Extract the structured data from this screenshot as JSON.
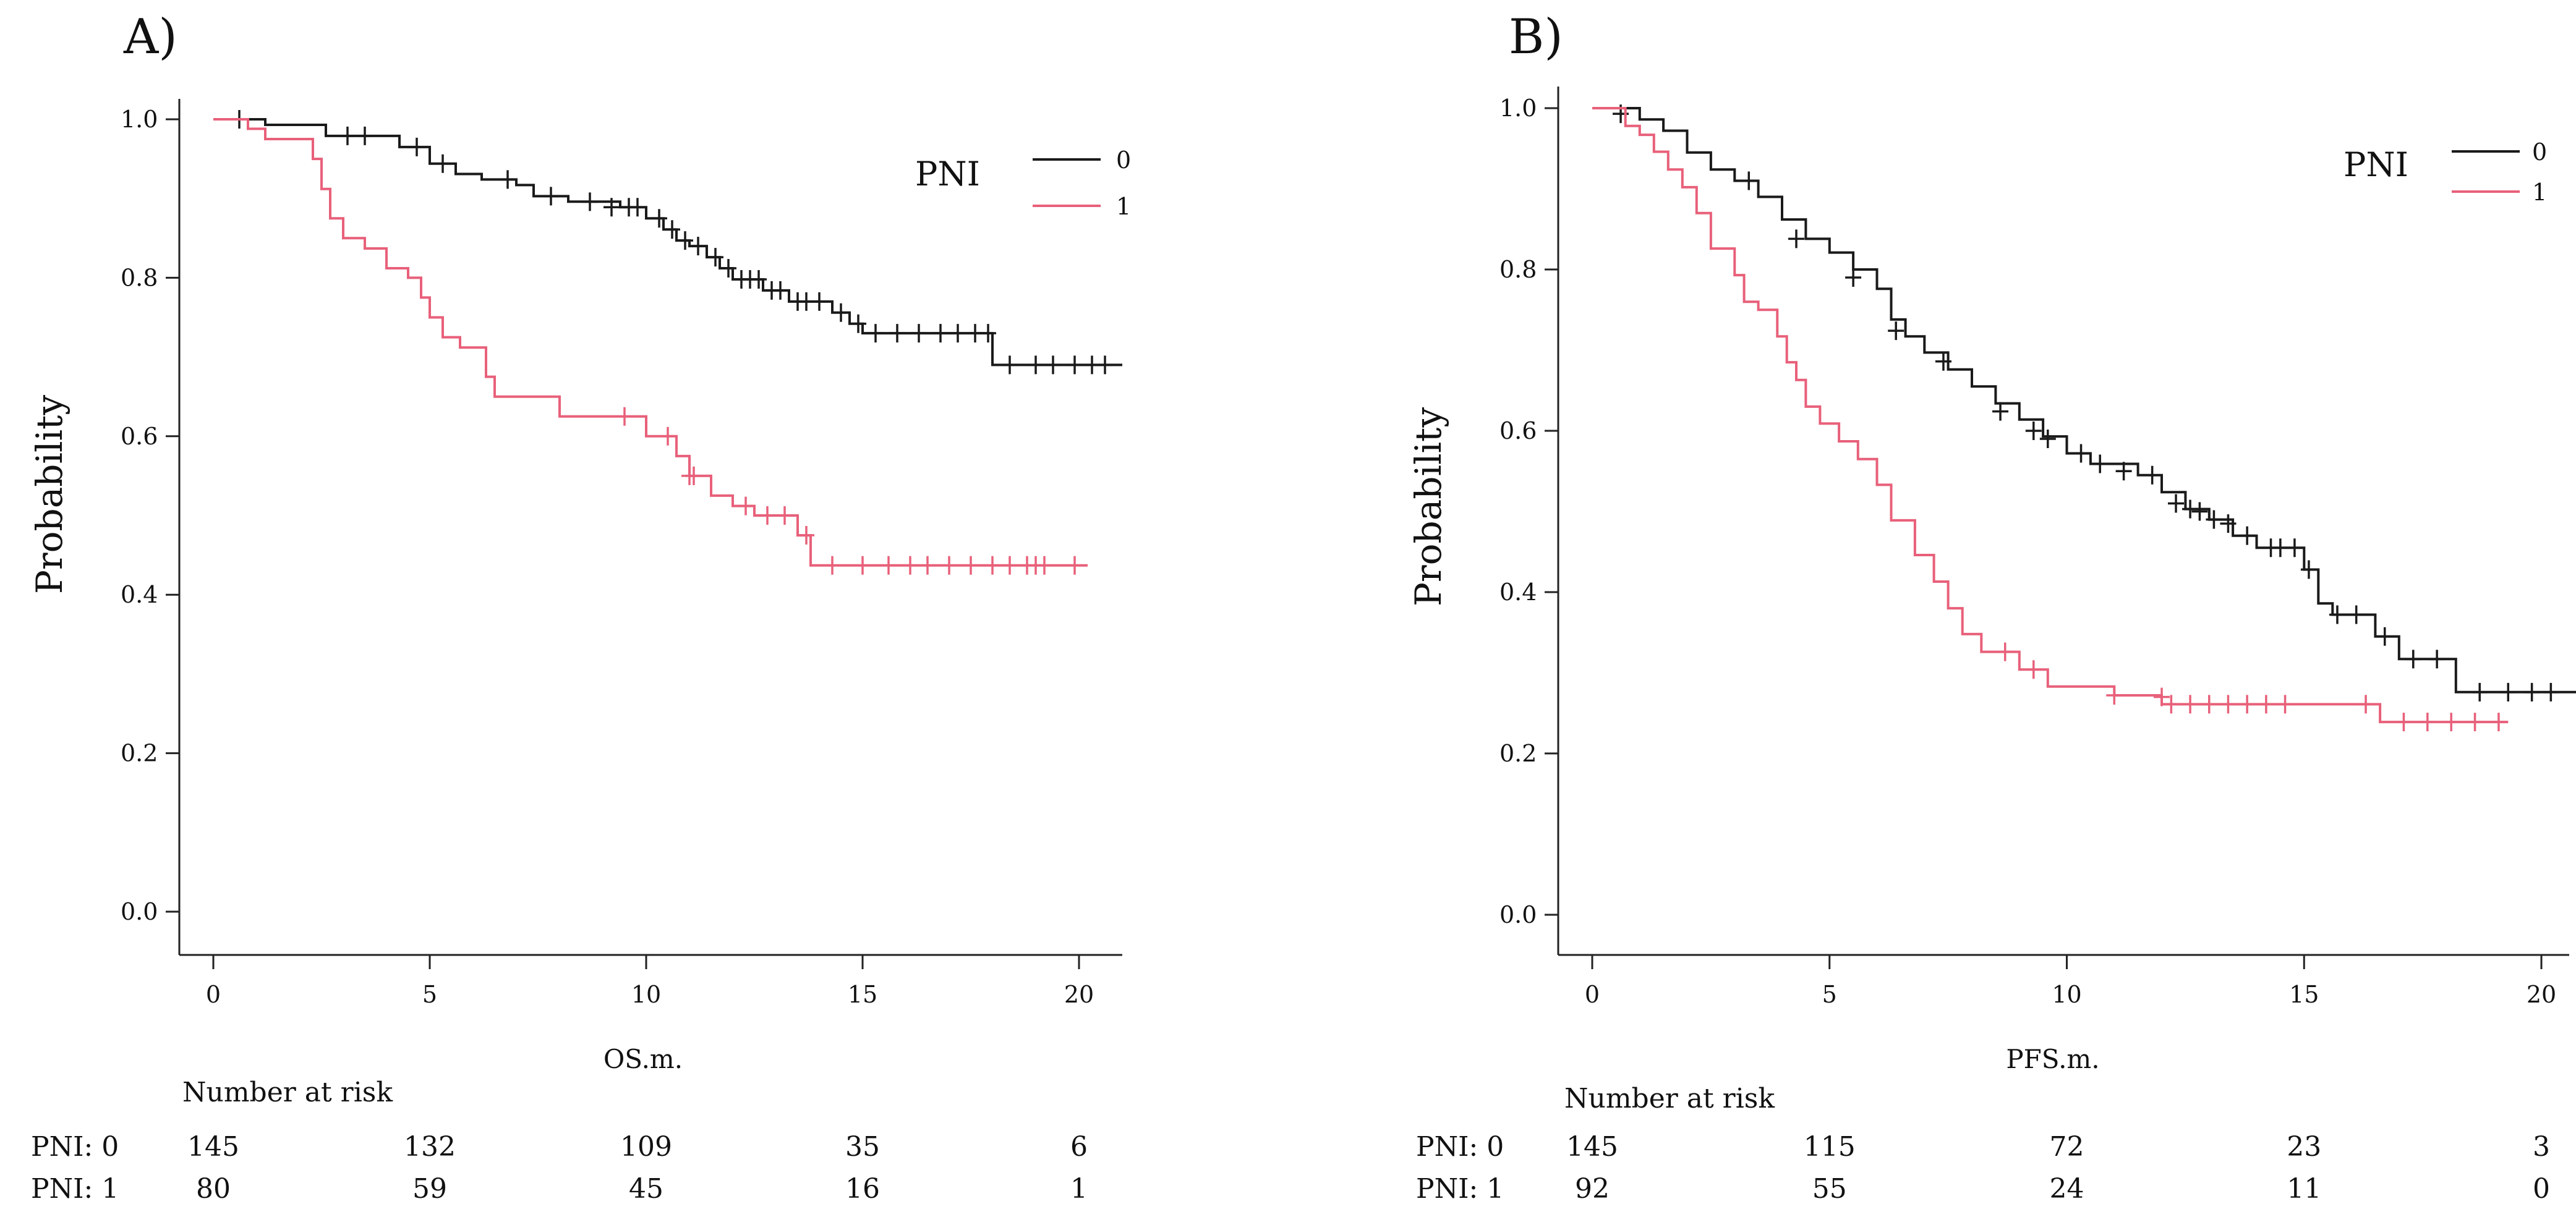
{
  "colors": {
    "group0": "#1a1a1a",
    "group1": "#e8607a"
  },
  "panels": [
    {
      "letter": "A)",
      "ylabel": "Probability",
      "xlabel": "OS.m.",
      "legend_title": "PNI",
      "legend_labels": [
        "0",
        "1"
      ],
      "risk_header": "Number at risk",
      "risk_rows": [
        {
          "label": "PNI: 0",
          "values": [
            "145",
            "132",
            "109",
            "35",
            "6"
          ]
        },
        {
          "label": "PNI: 1",
          "values": [
            "80",
            "59",
            "45",
            "16",
            "1"
          ]
        }
      ],
      "y_ticks": [
        "0.0",
        "0.2",
        "0.4",
        "0.6",
        "0.8",
        "1.0"
      ],
      "x_ticks": [
        "0",
        "5",
        "10",
        "15",
        "20"
      ]
    },
    {
      "letter": "B)",
      "ylabel": "Probability",
      "xlabel": "PFS.m.",
      "legend_title": "PNI",
      "legend_labels": [
        "0",
        "1"
      ],
      "risk_header": "Number at risk",
      "risk_rows": [
        {
          "label": "PNI: 0",
          "values": [
            "145",
            "115",
            "72",
            "23",
            "3"
          ]
        },
        {
          "label": "PNI: 1",
          "values": [
            "92",
            "55",
            "24",
            "11",
            "0"
          ]
        }
      ],
      "y_ticks": [
        "0.0",
        "0.2",
        "0.4",
        "0.6",
        "0.8",
        "1.0"
      ],
      "x_ticks": [
        "0",
        "5",
        "10",
        "15",
        "20"
      ]
    }
  ],
  "chart_data": [
    {
      "type": "line",
      "title": "",
      "xlabel": "OS.m.",
      "ylabel": "Probability",
      "xlim": [
        0,
        21
      ],
      "ylim": [
        0,
        1
      ],
      "legend": {
        "title": "PNI",
        "position": "top-right"
      },
      "series": [
        {
          "name": "0",
          "steps": [
            [
              0,
              1.0
            ],
            [
              1.2,
              0.993
            ],
            [
              2.6,
              0.979
            ],
            [
              4.3,
              0.965
            ],
            [
              5.0,
              0.944
            ],
            [
              5.6,
              0.931
            ],
            [
              6.2,
              0.924
            ],
            [
              7.0,
              0.917
            ],
            [
              7.4,
              0.903
            ],
            [
              8.2,
              0.896
            ],
            [
              9.4,
              0.889
            ],
            [
              10.0,
              0.875
            ],
            [
              10.4,
              0.861
            ],
            [
              10.7,
              0.847
            ],
            [
              11.0,
              0.84
            ],
            [
              11.4,
              0.826
            ],
            [
              11.7,
              0.812
            ],
            [
              12.0,
              0.798
            ],
            [
              12.7,
              0.784
            ],
            [
              13.3,
              0.77
            ],
            [
              14.3,
              0.756
            ],
            [
              14.7,
              0.742
            ],
            [
              15.0,
              0.73
            ],
            [
              18.0,
              0.69
            ]
          ],
          "end_x": 21,
          "censored": [
            [
              0.6,
              1.0
            ],
            [
              3.1,
              0.979
            ],
            [
              3.5,
              0.979
            ],
            [
              4.7,
              0.965
            ],
            [
              5.3,
              0.944
            ],
            [
              6.8,
              0.924
            ],
            [
              7.8,
              0.903
            ],
            [
              8.7,
              0.896
            ],
            [
              9.2,
              0.889
            ],
            [
              9.6,
              0.889
            ],
            [
              9.8,
              0.889
            ],
            [
              10.3,
              0.875
            ],
            [
              10.6,
              0.861
            ],
            [
              10.9,
              0.847
            ],
            [
              11.2,
              0.84
            ],
            [
              11.6,
              0.826
            ],
            [
              11.9,
              0.812
            ],
            [
              12.2,
              0.798
            ],
            [
              12.4,
              0.798
            ],
            [
              12.6,
              0.798
            ],
            [
              12.9,
              0.784
            ],
            [
              13.1,
              0.784
            ],
            [
              13.5,
              0.77
            ],
            [
              13.7,
              0.77
            ],
            [
              14.0,
              0.77
            ],
            [
              14.5,
              0.756
            ],
            [
              14.9,
              0.742
            ],
            [
              15.3,
              0.73
            ],
            [
              15.8,
              0.73
            ],
            [
              16.3,
              0.73
            ],
            [
              16.8,
              0.73
            ],
            [
              17.2,
              0.73
            ],
            [
              17.6,
              0.73
            ],
            [
              17.9,
              0.73
            ],
            [
              18.4,
              0.69
            ],
            [
              19.0,
              0.69
            ],
            [
              19.4,
              0.69
            ],
            [
              19.9,
              0.69
            ],
            [
              20.3,
              0.69
            ],
            [
              20.6,
              0.69
            ]
          ]
        },
        {
          "name": "1",
          "steps": [
            [
              0,
              1.0
            ],
            [
              0.8,
              0.988
            ],
            [
              1.2,
              0.975
            ],
            [
              2.3,
              0.95
            ],
            [
              2.5,
              0.912
            ],
            [
              2.7,
              0.875
            ],
            [
              3.0,
              0.85
            ],
            [
              3.5,
              0.837
            ],
            [
              4.0,
              0.812
            ],
            [
              4.5,
              0.8
            ],
            [
              4.8,
              0.775
            ],
            [
              5.0,
              0.75
            ],
            [
              5.3,
              0.725
            ],
            [
              5.7,
              0.712
            ],
            [
              6.3,
              0.675
            ],
            [
              6.5,
              0.65
            ],
            [
              8.0,
              0.625
            ],
            [
              10.0,
              0.6
            ],
            [
              10.7,
              0.575
            ],
            [
              11.0,
              0.55
            ],
            [
              11.5,
              0.525
            ],
            [
              12.0,
              0.512
            ],
            [
              12.5,
              0.5
            ],
            [
              13.5,
              0.475
            ],
            [
              13.8,
              0.437
            ]
          ],
          "end_x": 20.2,
          "censored": [
            [
              9.5,
              0.625
            ],
            [
              10.5,
              0.6
            ],
            [
              11.0,
              0.55
            ],
            [
              11.1,
              0.55
            ],
            [
              12.3,
              0.512
            ],
            [
              12.8,
              0.5
            ],
            [
              13.2,
              0.5
            ],
            [
              13.7,
              0.475
            ],
            [
              14.3,
              0.437
            ],
            [
              15.0,
              0.437
            ],
            [
              15.6,
              0.437
            ],
            [
              16.1,
              0.437
            ],
            [
              16.5,
              0.437
            ],
            [
              17.0,
              0.437
            ],
            [
              17.5,
              0.437
            ],
            [
              18.0,
              0.437
            ],
            [
              18.4,
              0.437
            ],
            [
              18.8,
              0.437
            ],
            [
              19.0,
              0.437
            ],
            [
              19.2,
              0.437
            ],
            [
              19.9,
              0.437
            ]
          ]
        }
      ]
    },
    {
      "type": "line",
      "title": "",
      "xlabel": "PFS.m.",
      "ylabel": "Probability",
      "xlim": [
        0,
        21
      ],
      "ylim": [
        0,
        1
      ],
      "legend": {
        "title": "PNI",
        "position": "top-right"
      },
      "series": [
        {
          "name": "0",
          "steps": [
            [
              0,
              1.0
            ],
            [
              1.0,
              0.986
            ],
            [
              1.5,
              0.972
            ],
            [
              2.0,
              0.945
            ],
            [
              2.5,
              0.924
            ],
            [
              3.0,
              0.91
            ],
            [
              3.5,
              0.89
            ],
            [
              4.0,
              0.862
            ],
            [
              4.5,
              0.838
            ],
            [
              5.0,
              0.821
            ],
            [
              5.5,
              0.8
            ],
            [
              6.0,
              0.776
            ],
            [
              6.3,
              0.738
            ],
            [
              6.6,
              0.717
            ],
            [
              7.0,
              0.697
            ],
            [
              7.5,
              0.676
            ],
            [
              8.0,
              0.655
            ],
            [
              8.5,
              0.634
            ],
            [
              9.0,
              0.614
            ],
            [
              9.5,
              0.593
            ],
            [
              10.0,
              0.572
            ],
            [
              10.5,
              0.559
            ],
            [
              11.5,
              0.545
            ],
            [
              12.0,
              0.524
            ],
            [
              12.5,
              0.503
            ],
            [
              13.0,
              0.49
            ],
            [
              13.5,
              0.47
            ],
            [
              14.0,
              0.455
            ],
            [
              15.0,
              0.428
            ],
            [
              15.3,
              0.386
            ],
            [
              15.6,
              0.372
            ],
            [
              16.5,
              0.345
            ],
            [
              17.0,
              0.317
            ],
            [
              18.2,
              0.276
            ]
          ],
          "end_x": 20.8,
          "censored": [
            [
              0.6,
              0.993
            ],
            [
              3.3,
              0.91
            ],
            [
              4.3,
              0.838
            ],
            [
              5.5,
              0.79
            ],
            [
              6.4,
              0.724
            ],
            [
              7.4,
              0.686
            ],
            [
              8.6,
              0.624
            ],
            [
              9.3,
              0.6
            ],
            [
              9.6,
              0.59
            ],
            [
              10.3,
              0.572
            ],
            [
              10.7,
              0.559
            ],
            [
              11.2,
              0.55
            ],
            [
              11.8,
              0.545
            ],
            [
              12.3,
              0.51
            ],
            [
              12.6,
              0.503
            ],
            [
              12.8,
              0.5
            ],
            [
              13.1,
              0.49
            ],
            [
              13.4,
              0.485
            ],
            [
              13.8,
              0.47
            ],
            [
              14.3,
              0.455
            ],
            [
              14.5,
              0.455
            ],
            [
              14.8,
              0.455
            ],
            [
              15.1,
              0.428
            ],
            [
              15.7,
              0.372
            ],
            [
              16.1,
              0.372
            ],
            [
              16.7,
              0.345
            ],
            [
              17.3,
              0.317
            ],
            [
              17.8,
              0.317
            ],
            [
              18.7,
              0.276
            ],
            [
              19.3,
              0.276
            ],
            [
              19.8,
              0.276
            ],
            [
              20.2,
              0.276
            ]
          ]
        },
        {
          "name": "1",
          "steps": [
            [
              0,
              1.0
            ],
            [
              0.7,
              0.978
            ],
            [
              1.0,
              0.967
            ],
            [
              1.3,
              0.946
            ],
            [
              1.6,
              0.924
            ],
            [
              1.9,
              0.902
            ],
            [
              2.2,
              0.87
            ],
            [
              2.5,
              0.826
            ],
            [
              3.0,
              0.793
            ],
            [
              3.2,
              0.76
            ],
            [
              3.5,
              0.75
            ],
            [
              3.9,
              0.717
            ],
            [
              4.1,
              0.685
            ],
            [
              4.3,
              0.663
            ],
            [
              4.5,
              0.63
            ],
            [
              4.8,
              0.609
            ],
            [
              5.2,
              0.587
            ],
            [
              5.6,
              0.565
            ],
            [
              6.0,
              0.533
            ],
            [
              6.3,
              0.489
            ],
            [
              6.8,
              0.446
            ],
            [
              7.2,
              0.413
            ],
            [
              7.5,
              0.38
            ],
            [
              7.8,
              0.348
            ],
            [
              8.2,
              0.326
            ],
            [
              9.0,
              0.304
            ],
            [
              9.6,
              0.283
            ],
            [
              11.0,
              0.272
            ],
            [
              12.0,
              0.261
            ],
            [
              16.6,
              0.239
            ]
          ],
          "end_x": 19.3,
          "censored": [
            [
              8.7,
              0.326
            ],
            [
              9.3,
              0.304
            ],
            [
              11.0,
              0.272
            ],
            [
              12.0,
              0.27
            ],
            [
              12.2,
              0.261
            ],
            [
              12.6,
              0.261
            ],
            [
              13.0,
              0.261
            ],
            [
              13.4,
              0.261
            ],
            [
              13.8,
              0.261
            ],
            [
              14.2,
              0.261
            ],
            [
              14.6,
              0.261
            ],
            [
              16.3,
              0.261
            ],
            [
              17.1,
              0.239
            ],
            [
              17.6,
              0.239
            ],
            [
              18.1,
              0.239
            ],
            [
              18.6,
              0.239
            ],
            [
              19.1,
              0.239
            ]
          ]
        }
      ]
    }
  ]
}
